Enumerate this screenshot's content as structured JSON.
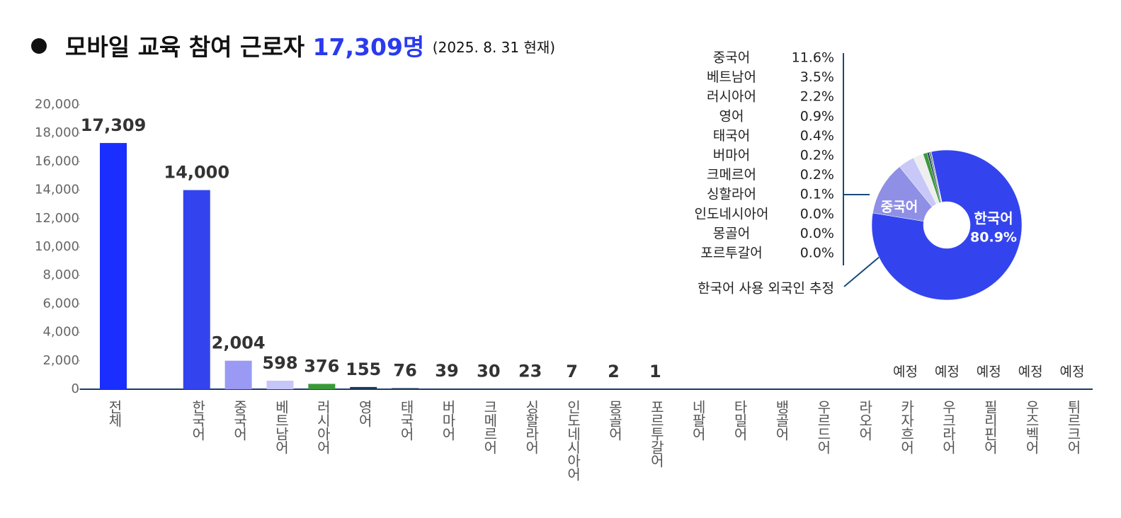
{
  "chart_data": [
    {
      "type": "bar",
      "title": "모바일 교육 참여 근로자",
      "title_highlight": "17,309명",
      "subtitle": "(2025. 8. 31 현재)",
      "categories": [
        "전체",
        null,
        "한국어",
        "중국어",
        "베트남어",
        "러시아어",
        "영어",
        "태국어",
        "버마어",
        "크메르어",
        "싱할라어",
        "인도네시아어",
        "몽골어",
        "포르투갈어",
        "네팔어",
        "타밀어",
        "뱅골어",
        "우르드어",
        "라오어",
        "카자흐어",
        "우크라어",
        "필리핀어",
        "우즈벡어",
        "튀르크어"
      ],
      "values": [
        17309,
        null,
        14000,
        2004,
        598,
        376,
        155,
        76,
        39,
        30,
        23,
        7,
        2,
        1,
        null,
        null,
        null,
        null,
        null,
        null,
        null,
        null,
        null,
        null
      ],
      "value_labels": [
        "17,309",
        null,
        "14,000",
        "2,004",
        "598",
        "376",
        "155",
        "76",
        "39",
        "30",
        "23",
        "7",
        "2",
        "1",
        null,
        null,
        null,
        null,
        null,
        "예정",
        "예정",
        "예정",
        "예정",
        "예정"
      ],
      "colors": [
        "#1a2eff",
        null,
        "#3344ee",
        "#9a9af5",
        "#c6c6f8",
        "#3a9a3a",
        "#1a3a5a",
        "#1a3a5a",
        "#1a3a5a",
        "#1a3a5a",
        "#1a3a5a",
        "#1a3a5a",
        "#1a3a5a",
        "#1a3a5a",
        null,
        null,
        null,
        null,
        null,
        null,
        null,
        null,
        null,
        null
      ],
      "ylim": [
        0,
        20000
      ],
      "yticks": [
        {
          "value": 0,
          "label": "0"
        },
        {
          "value": 2000,
          "label": "2,000"
        },
        {
          "value": 4000,
          "label": "4,000"
        },
        {
          "value": 6000,
          "label": "6,000"
        },
        {
          "value": 8000,
          "label": "8,000"
        },
        {
          "value": 10000,
          "label": "10,000"
        },
        {
          "value": 12000,
          "label": "12,000"
        },
        {
          "value": 14000,
          "label": "14,000"
        },
        {
          "value": 16000,
          "label": "16,000"
        },
        {
          "value": 18000,
          "label": "18,000"
        },
        {
          "value": 20000,
          "label": "20,000"
        }
      ],
      "grid": false
    },
    {
      "type": "pie",
      "categories": [
        "한국어",
        "중국어",
        "베트남어",
        "러시아어",
        "영어",
        "태국어",
        "버마어",
        "크메르어",
        "싱할라어",
        "인도네시아어",
        "몽골어",
        "포르투갈어"
      ],
      "values": [
        80.9,
        11.6,
        3.5,
        2.2,
        0.9,
        0.4,
        0.2,
        0.2,
        0.1,
        0.0,
        0.0,
        0.0
      ],
      "value_labels": [
        "80.9%",
        "11.6%",
        "3.5%",
        "2.2%",
        "0.9%",
        "0.4%",
        "0.2%",
        "0.2%",
        "0.1%",
        "0.0%",
        "0.0%",
        "0.0%"
      ],
      "colors": [
        "#3344ee",
        "#8f8fe6",
        "#c8c8f8",
        "#eeeeee",
        "#3a9a3a",
        "#1a3a5a",
        "#2a6a2a",
        "#0d2a3a",
        "#555555",
        "#1a1a1a",
        "#c03030",
        "#333333"
      ],
      "annotation": "한국어 사용 외국인 추정"
    }
  ]
}
